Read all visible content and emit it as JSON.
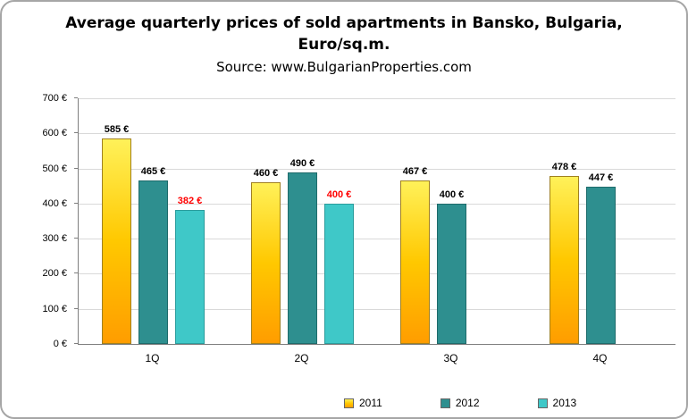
{
  "header": {
    "title_line1": "Average quarterly prices of sold apartments in Bansko, Bulgaria,",
    "title_line2": "Euro/sq.m.",
    "subtitle": "Source: www.BulgarianProperties.com"
  },
  "chart_data": {
    "type": "bar",
    "title": "Average quarterly prices of sold apartments in Bansko, Bulgaria, Euro/sq.m.",
    "subtitle": "Source: www.BulgarianProperties.com",
    "categories": [
      "1Q",
      "2Q",
      "3Q",
      "4Q"
    ],
    "series": [
      {
        "name": "2011",
        "values": [
          585,
          460,
          467,
          478
        ],
        "gradient": [
          "#FFF159",
          "#FFC800",
          "#FF9D00"
        ],
        "border_color": "#a08020",
        "label_color": "#000000"
      },
      {
        "name": "2012",
        "values": [
          465,
          490,
          400,
          447
        ],
        "color": "#2E8F8F",
        "border_color": "#1E6B6B",
        "label_color": "#000000"
      },
      {
        "name": "2013",
        "values": [
          382,
          400,
          null,
          null
        ],
        "color": "#3FC8C8",
        "border_color": "#2B9C9C",
        "label_color": "#FF0000"
      }
    ],
    "value_suffix": " €",
    "xlabel": "",
    "ylabel": "",
    "ylim": [
      0,
      700
    ],
    "yticks": [
      0,
      100,
      200,
      300,
      400,
      500,
      600,
      700
    ],
    "ytick_suffix": " €",
    "grid": true,
    "legend_position": "bottom"
  }
}
